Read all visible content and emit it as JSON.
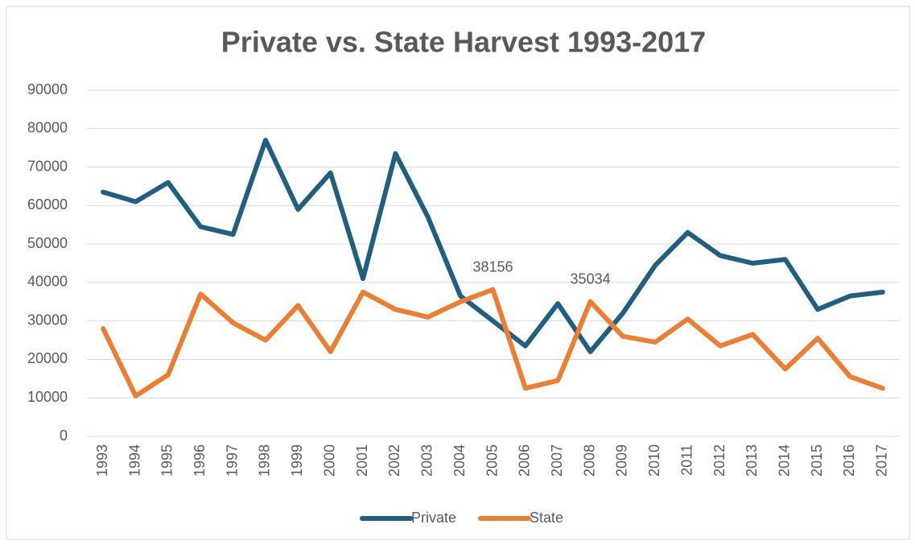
{
  "chart_data": {
    "type": "line",
    "title": "Private vs. State Harvest 1993-2017",
    "categories": [
      "1993",
      "1994",
      "1995",
      "1996",
      "1997",
      "1998",
      "1999",
      "2000",
      "2001",
      "2002",
      "2003",
      "2004",
      "2005",
      "2006",
      "2007",
      "2008",
      "2009",
      "2010",
      "2011",
      "2012",
      "2013",
      "2014",
      "2015",
      "2016",
      "2017"
    ],
    "series": [
      {
        "name": "Private",
        "color": "#1f6080",
        "values": [
          63500,
          61000,
          66000,
          54500,
          52500,
          77000,
          59000,
          68500,
          41000,
          73500,
          57000,
          36500,
          30000,
          23500,
          34500,
          22000,
          32000,
          44500,
          53000,
          47000,
          45000,
          46000,
          33000,
          36500,
          37500
        ]
      },
      {
        "name": "State",
        "color": "#ed7d31",
        "values": [
          28000,
          10500,
          16000,
          37000,
          29500,
          25000,
          34000,
          22000,
          37500,
          33000,
          31000,
          35000,
          38156,
          12500,
          14500,
          35034,
          26000,
          24500,
          30500,
          23500,
          26500,
          17500,
          25500,
          15500,
          12500
        ],
        "value_labels": [
          null,
          null,
          null,
          null,
          null,
          null,
          null,
          null,
          null,
          null,
          null,
          null,
          "38156",
          null,
          null,
          "35034",
          null,
          null,
          null,
          null,
          null,
          null,
          null,
          null,
          null
        ]
      }
    ],
    "ylim": [
      0,
      90000
    ],
    "yticks": [
      0,
      10000,
      20000,
      30000,
      40000,
      50000,
      60000,
      70000,
      80000,
      90000
    ],
    "grid": true,
    "legend": "bottom"
  }
}
